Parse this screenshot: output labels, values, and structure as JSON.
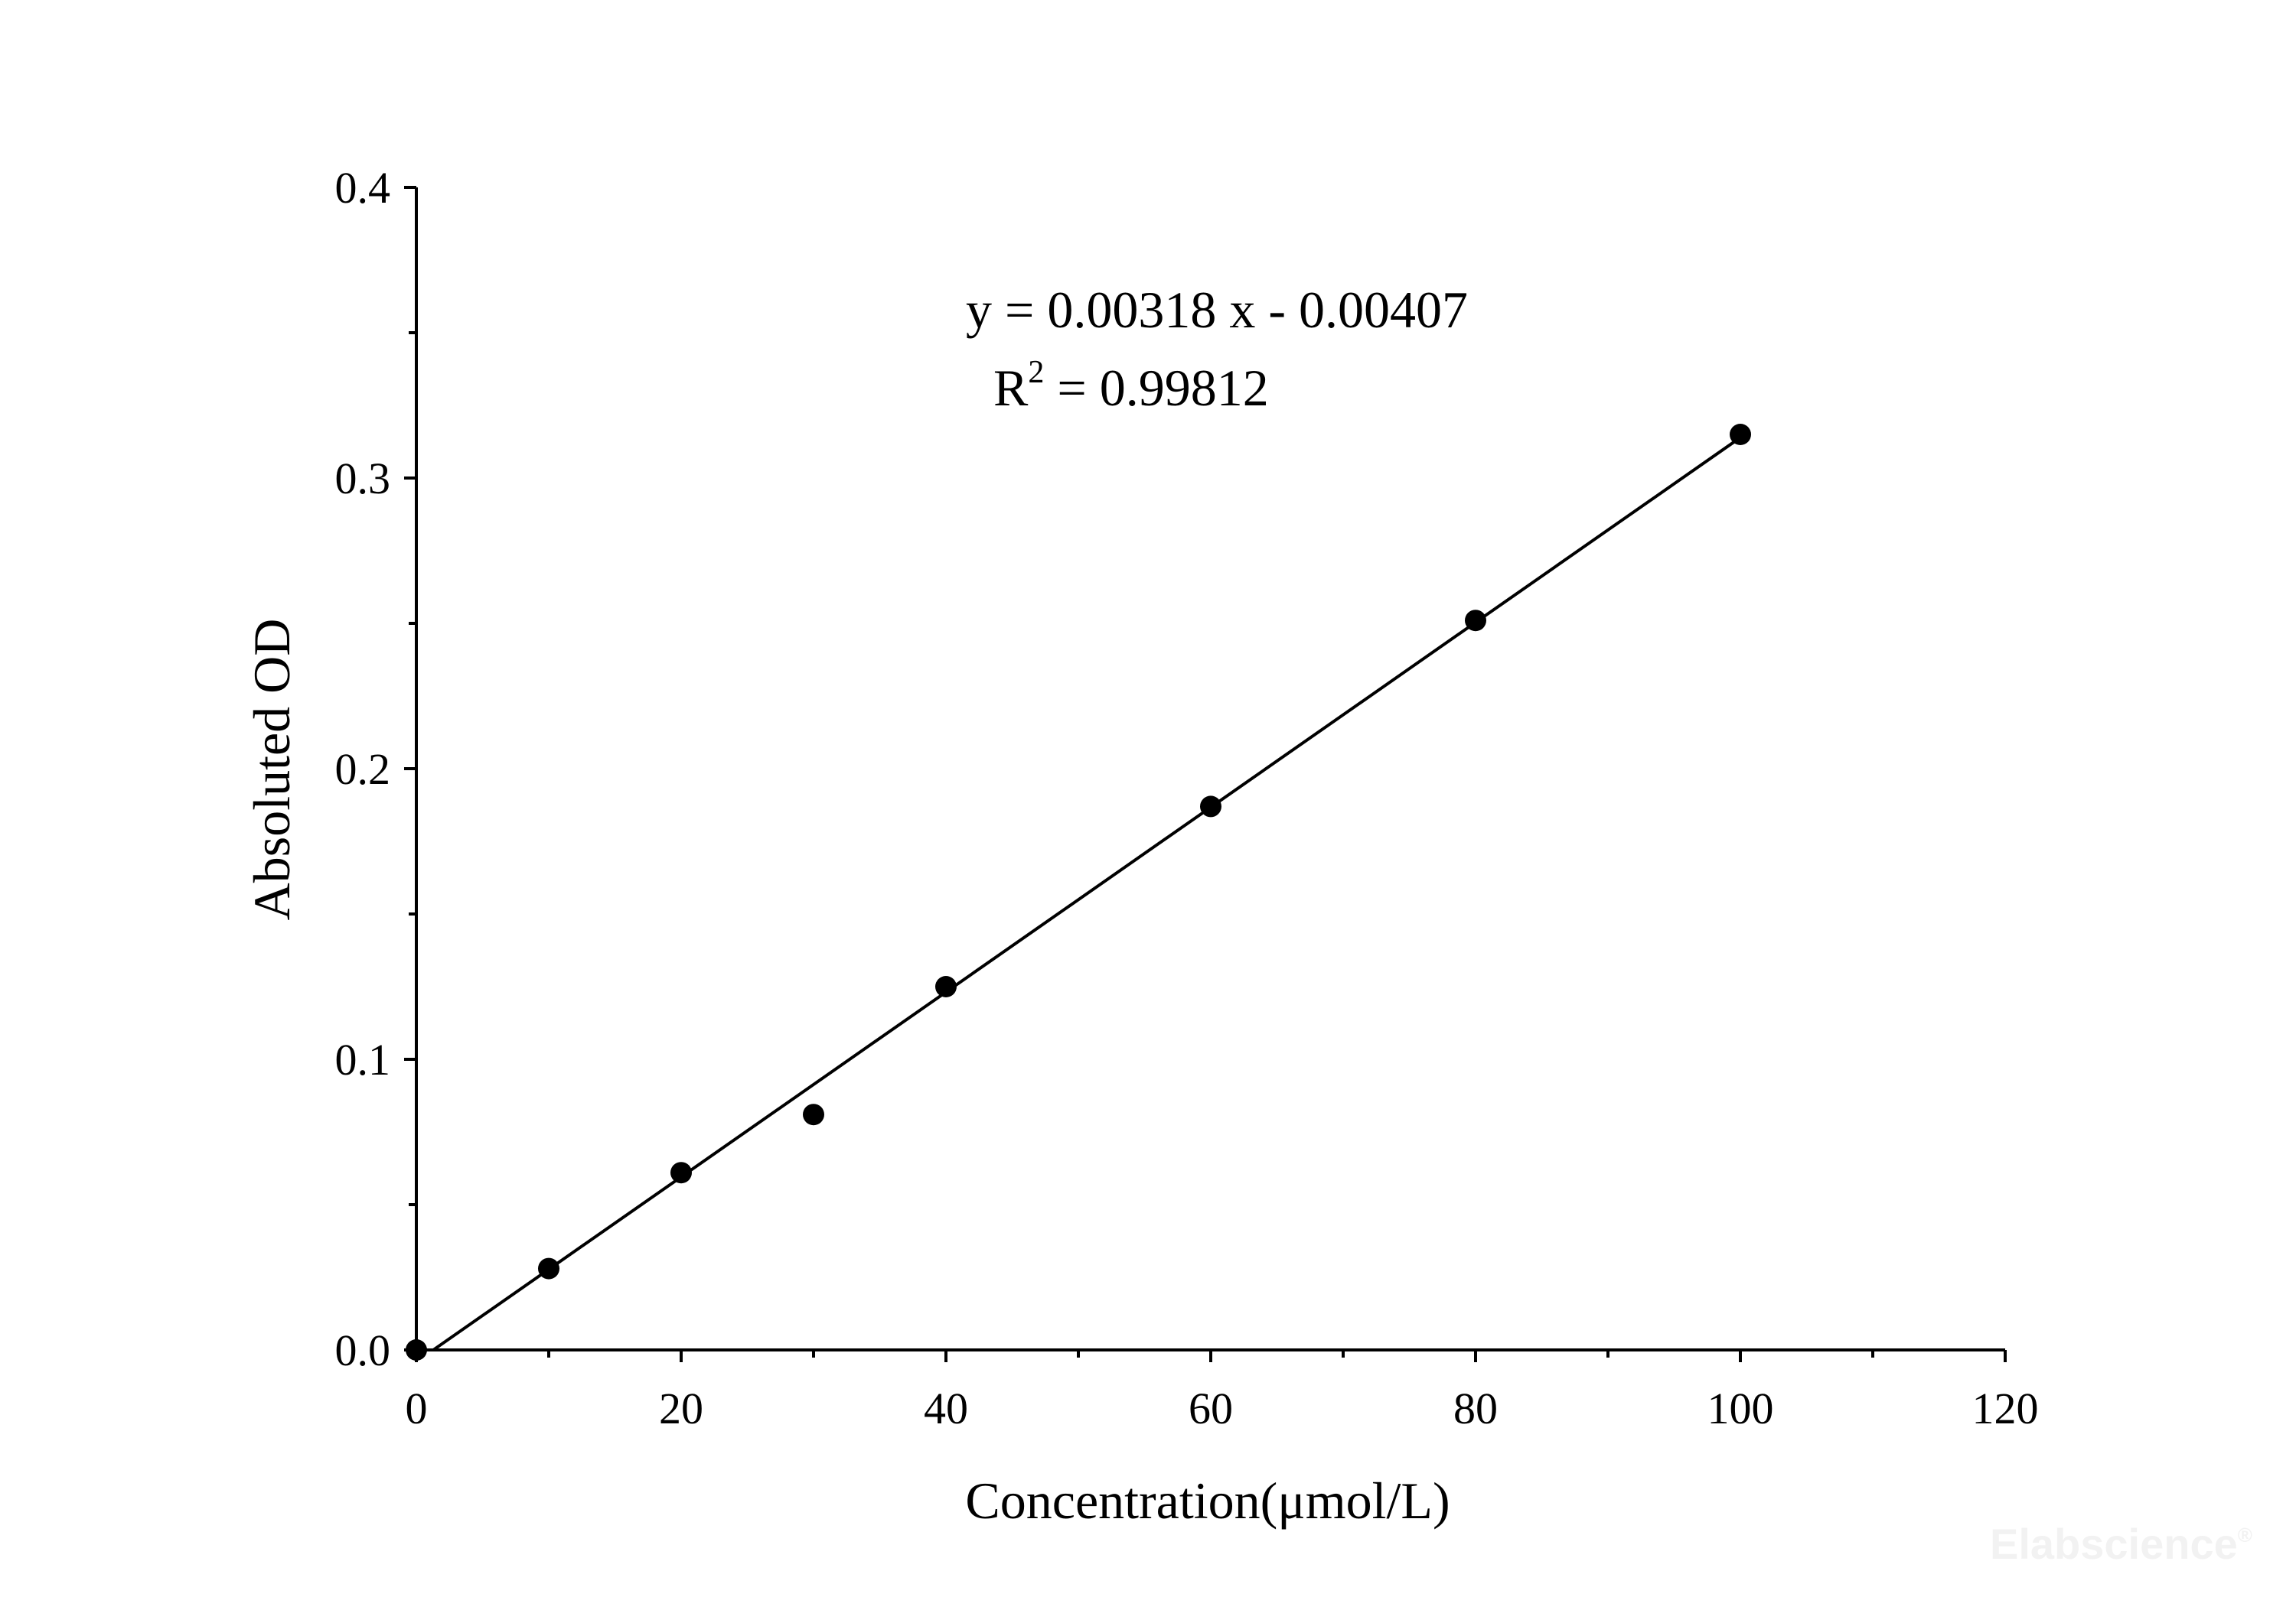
{
  "chart_data": {
    "type": "scatter",
    "xlabel": "Concentration(μmol/L)",
    "ylabel": "Absoluted OD",
    "xlim": [
      0,
      120
    ],
    "ylim": [
      0,
      0.4
    ],
    "x_ticks": [
      0,
      20,
      40,
      60,
      80,
      100,
      120
    ],
    "x_tick_labels": [
      "0",
      "20",
      "40",
      "60",
      "80",
      "100",
      "120"
    ],
    "x_minor_step": 10,
    "y_ticks": [
      0.0,
      0.1,
      0.2,
      0.3,
      0.4
    ],
    "y_tick_labels": [
      "0.0",
      "0.1",
      "0.2",
      "0.3",
      "0.4"
    ],
    "y_minor_step": 0.05,
    "grid": false,
    "legend": "none",
    "series": [
      {
        "x": [
          0,
          10,
          20,
          30,
          40,
          60,
          80,
          100
        ],
        "y": [
          0.0,
          0.028,
          0.061,
          0.081,
          0.125,
          0.187,
          0.251,
          0.315
        ],
        "marker": "filled-circle",
        "color": "#000000"
      }
    ],
    "fit_line": {
      "slope": 0.00318,
      "intercept": -0.00407,
      "x_range": [
        1.28,
        100
      ],
      "color": "#000000"
    },
    "annotations": {
      "equation": "y = 0.00318 x - 0.00407",
      "r2_label": "R",
      "r2_sup": "2",
      "r2_value": " = 0.99812"
    }
  },
  "watermark": "Elabscience",
  "watermark_mark": "®"
}
